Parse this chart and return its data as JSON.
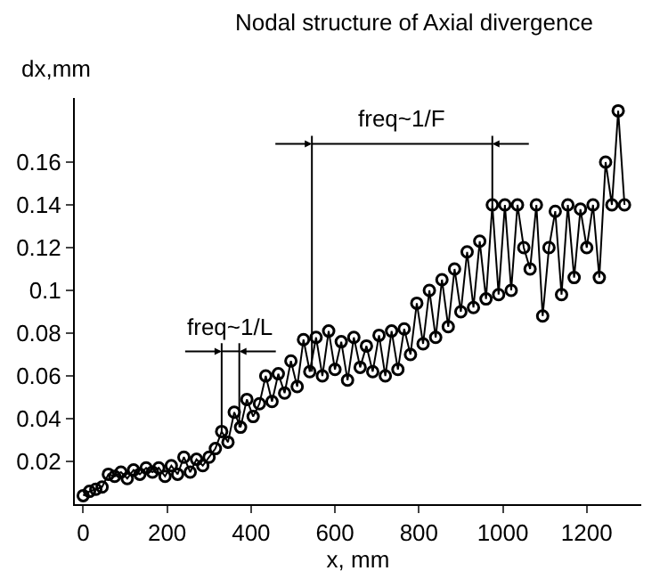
{
  "chart_data": {
    "type": "line",
    "title": "Nodal structure of Axial divergence",
    "xlabel": "x, mm",
    "ylabel": "dx,mm",
    "x": [
      0,
      15,
      30,
      45,
      60,
      75,
      90,
      105,
      120,
      135,
      150,
      165,
      180,
      195,
      210,
      225,
      240,
      255,
      270,
      285,
      300,
      315,
      330,
      345,
      360,
      375,
      390,
      405,
      420,
      435,
      450,
      465,
      480,
      495,
      510,
      525,
      540,
      555,
      570,
      585,
      600,
      615,
      630,
      645,
      660,
      675,
      690,
      705,
      720,
      735,
      750,
      765,
      780,
      795,
      810,
      825,
      840,
      855,
      870,
      885,
      900,
      915,
      930,
      945,
      960,
      975,
      990,
      1005,
      1020,
      1035,
      1050,
      1065,
      1080,
      1095,
      1110,
      1125,
      1140,
      1155,
      1170,
      1185,
      1200,
      1215,
      1230,
      1245,
      1260,
      1275,
      1290
    ],
    "series": [
      {
        "color": "#000000",
        "values": [
          0.004,
          0.006,
          0.007,
          0.008,
          0.014,
          0.013,
          0.015,
          0.012,
          0.016,
          0.014,
          0.017,
          0.015,
          0.017,
          0.013,
          0.018,
          0.014,
          0.022,
          0.015,
          0.021,
          0.018,
          0.022,
          0.026,
          0.034,
          0.029,
          0.043,
          0.036,
          0.049,
          0.041,
          0.047,
          0.06,
          0.048,
          0.061,
          0.052,
          0.067,
          0.055,
          0.077,
          0.062,
          0.078,
          0.06,
          0.081,
          0.063,
          0.076,
          0.058,
          0.078,
          0.064,
          0.074,
          0.062,
          0.079,
          0.06,
          0.081,
          0.063,
          0.082,
          0.07,
          0.094,
          0.075,
          0.1,
          0.078,
          0.105,
          0.083,
          0.11,
          0.09,
          0.118,
          0.092,
          0.123,
          0.096,
          0.14,
          0.098,
          0.14,
          0.1,
          0.14,
          0.12,
          0.11,
          0.14,
          0.088,
          0.12,
          0.137,
          0.098,
          0.14,
          0.106,
          0.138,
          0.12,
          0.14,
          0.106,
          0.16,
          0.14,
          0.184,
          0.14
        ]
      }
    ],
    "xlim": [
      -20,
      1330
    ],
    "xticks": [
      0,
      200,
      400,
      600,
      800,
      1000,
      1200
    ],
    "ylim": [
      0,
      0.19
    ],
    "yticks": [
      0.02,
      0.04,
      0.06,
      0.08,
      0.1,
      0.12,
      0.14,
      0.16
    ],
    "marker": "circle",
    "line_style": "solid",
    "grid": false,
    "annotations": [
      "freq~1/L",
      "freq~1/F"
    ],
    "ref_lines": [
      {
        "axis": "x",
        "value": 330,
        "color": "#000000"
      },
      {
        "axis": "x",
        "value": 372,
        "color": "#000000"
      },
      {
        "axis": "x",
        "value": 545,
        "color": "#000000"
      },
      {
        "axis": "x",
        "value": 975,
        "color": "#000000"
      }
    ]
  }
}
